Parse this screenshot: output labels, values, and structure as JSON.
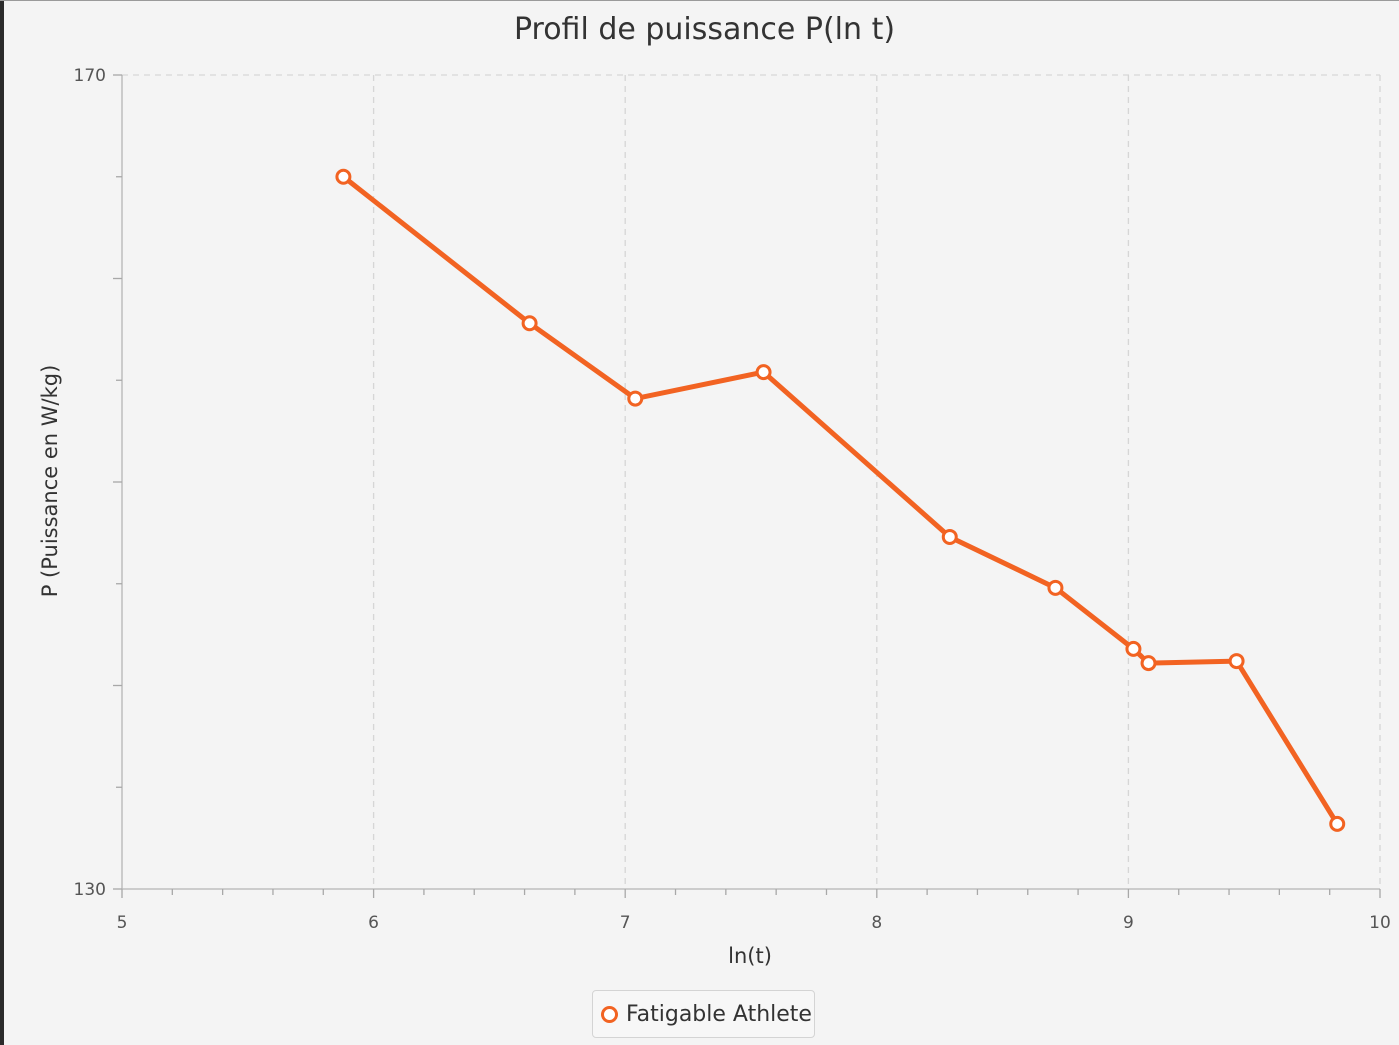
{
  "chart_data": {
    "type": "line",
    "title": "Profil de puissance P(ln t)",
    "xlabel": "ln(t)",
    "ylabel": "P (Puissance en W/kg)",
    "xlim": [
      5,
      10
    ],
    "ylim": [
      130,
      170
    ],
    "x_ticks": [
      "5",
      "6",
      "7",
      "8",
      "9",
      "10"
    ],
    "y_ticks": [
      "170",
      "130"
    ],
    "grid": true,
    "legend_position": "bottom",
    "series": [
      {
        "name": "Fatigable Athlete",
        "color": "#f26322",
        "marker": "open-circle",
        "x": [
          5.88,
          6.62,
          7.04,
          7.55,
          8.29,
          8.71,
          9.02,
          9.08,
          9.43,
          9.83
        ],
        "y": [
          165.0,
          157.8,
          154.1,
          155.4,
          147.3,
          144.8,
          141.8,
          141.1,
          141.2,
          133.2
        ]
      }
    ]
  }
}
